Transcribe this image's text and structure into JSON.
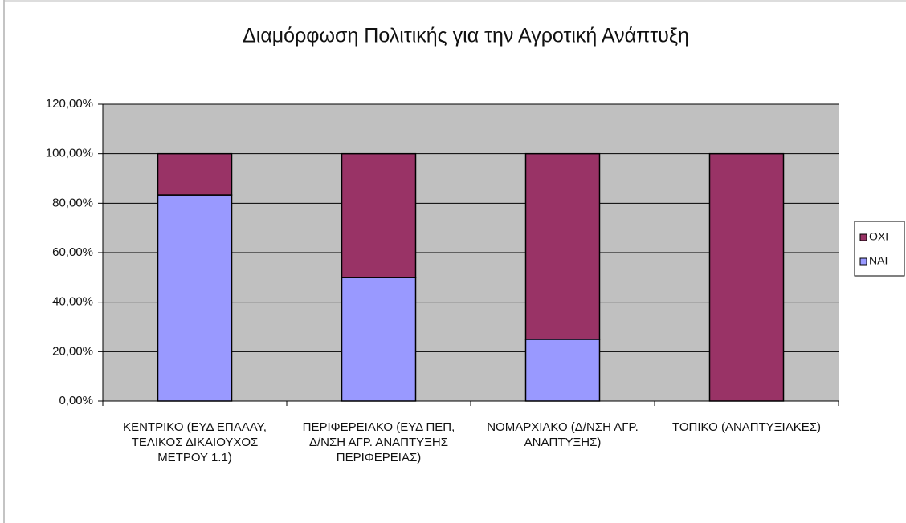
{
  "chart_data": {
    "type": "bar",
    "stacked": true,
    "title": "Διαμόρφωση Πολιτικής για την Αγροτική Ανάπτυξη",
    "categories": [
      "ΚΕΝΤΡΙΚΟ (ΕΥΔ ΕΠΑΑΑΥ, ΤΕΛΙΚΟΣ ΔΙΚΑΙΟΥΧΟΣ ΜΕΤΡΟΥ 1.1)",
      "ΠΕΡΙΦΕΡΕΙΑΚΟ (ΕΥΔ ΠΕΠ, Δ/ΝΣΗ ΑΓΡ. ΑΝΑΠΤΥΞΗΣ ΠΕΡΙΦΕΡΕΙΑΣ)",
      "ΝΟΜΑΡΧΙΑΚΟ (Δ/ΝΣΗ ΑΓΡ. ΑΝΑΠΤΥΞΗΣ)",
      "ΤΟΠΙΚΟ (ΑΝΑΠΤΥΞΙΑΚΕΣ)"
    ],
    "series": [
      {
        "name": "ΝΑΙ",
        "color": "#9999ff",
        "values": [
          83.33,
          50,
          25,
          0
        ]
      },
      {
        "name": "ΟΧΙ",
        "color": "#993366",
        "values": [
          16.67,
          50,
          75,
          100
        ]
      }
    ],
    "ylim": [
      0,
      120
    ],
    "yticks": [
      {
        "value": 0,
        "label": "0,00%"
      },
      {
        "value": 20,
        "label": "20,00%"
      },
      {
        "value": 40,
        "label": "40,00%"
      },
      {
        "value": 60,
        "label": "60,00%"
      },
      {
        "value": 80,
        "label": "80,00%"
      },
      {
        "value": 100,
        "label": "100,00%"
      },
      {
        "value": 120,
        "label": "120,00%"
      }
    ],
    "grid": true,
    "legend": "right"
  }
}
